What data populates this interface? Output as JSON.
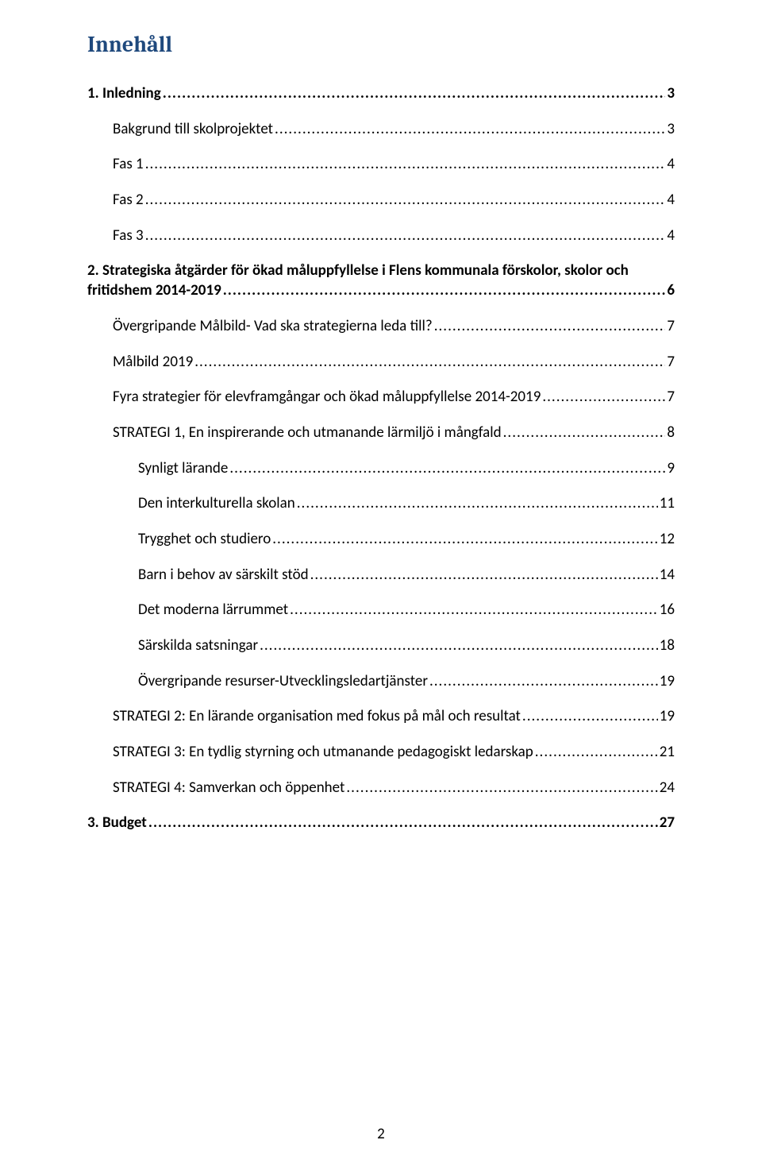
{
  "title": {
    "text": "Innehåll",
    "color": "#1f497d"
  },
  "page_number": "2",
  "toc": [
    {
      "label": "1.   Inledning",
      "page": "3",
      "bold": true,
      "indent": 0,
      "multiline": false
    },
    {
      "label": "Bakgrund till skolprojektet",
      "page": "3",
      "bold": false,
      "indent": 1,
      "multiline": false
    },
    {
      "label": "Fas 1",
      "page": "4",
      "bold": false,
      "indent": 1,
      "multiline": false
    },
    {
      "label": "Fas 2",
      "page": "4",
      "bold": false,
      "indent": 1,
      "multiline": false
    },
    {
      "label": "Fas 3",
      "page": "4",
      "bold": false,
      "indent": 1,
      "multiline": false
    },
    {
      "label": "2.   Strategiska åtgärder för ökad måluppfyllelse i Flens kommunala förskolor, skolor och",
      "label2": "fritidshem 2014-2019",
      "page": "6",
      "bold": true,
      "indent": 0,
      "multiline": true
    },
    {
      "label": "Övergripande Målbild- Vad ska strategierna leda till?",
      "page": "7",
      "bold": false,
      "indent": 1,
      "multiline": false
    },
    {
      "label": "Målbild 2019",
      "page": "7",
      "bold": false,
      "indent": 1,
      "multiline": false
    },
    {
      "label": "Fyra strategier för elevframgångar och ökad måluppfyllelse 2014-2019",
      "page": "7",
      "bold": false,
      "indent": 1,
      "multiline": false
    },
    {
      "label": "STRATEGI 1, En inspirerande och utmanande lärmiljö i mångfald",
      "page": "8",
      "bold": false,
      "indent": 1,
      "multiline": false
    },
    {
      "label": "Synligt lärande",
      "page": "9",
      "bold": false,
      "indent": 2,
      "multiline": false
    },
    {
      "label": "Den interkulturella skolan",
      "page": "11",
      "bold": false,
      "indent": 2,
      "multiline": false
    },
    {
      "label": "Trygghet och studiero",
      "page": "12",
      "bold": false,
      "indent": 2,
      "multiline": false
    },
    {
      "label": "Barn i behov av särskilt stöd",
      "page": "14",
      "bold": false,
      "indent": 2,
      "multiline": false
    },
    {
      "label": "Det moderna lärrummet",
      "page": "16",
      "bold": false,
      "indent": 2,
      "multiline": false
    },
    {
      "label": "Särskilda satsningar",
      "page": "18",
      "bold": false,
      "indent": 2,
      "multiline": false
    },
    {
      "label": "Övergripande resurser-Utvecklingsledartjänster",
      "page": "19",
      "bold": false,
      "indent": 2,
      "multiline": false
    },
    {
      "label": "STRATEGI 2: En lärande organisation med fokus på mål och resultat",
      "page": "19",
      "bold": false,
      "indent": 1,
      "multiline": false
    },
    {
      "label": "STRATEGI 3: En tydlig styrning och utmanande pedagogiskt ledarskap",
      "page": "21",
      "bold": false,
      "indent": 1,
      "multiline": false
    },
    {
      "label": "STRATEGI 4: Samverkan och öppenhet",
      "page": "24",
      "bold": false,
      "indent": 1,
      "multiline": false
    },
    {
      "label": "3.   Budget",
      "page": "27",
      "bold": true,
      "indent": 0,
      "multiline": false
    }
  ]
}
